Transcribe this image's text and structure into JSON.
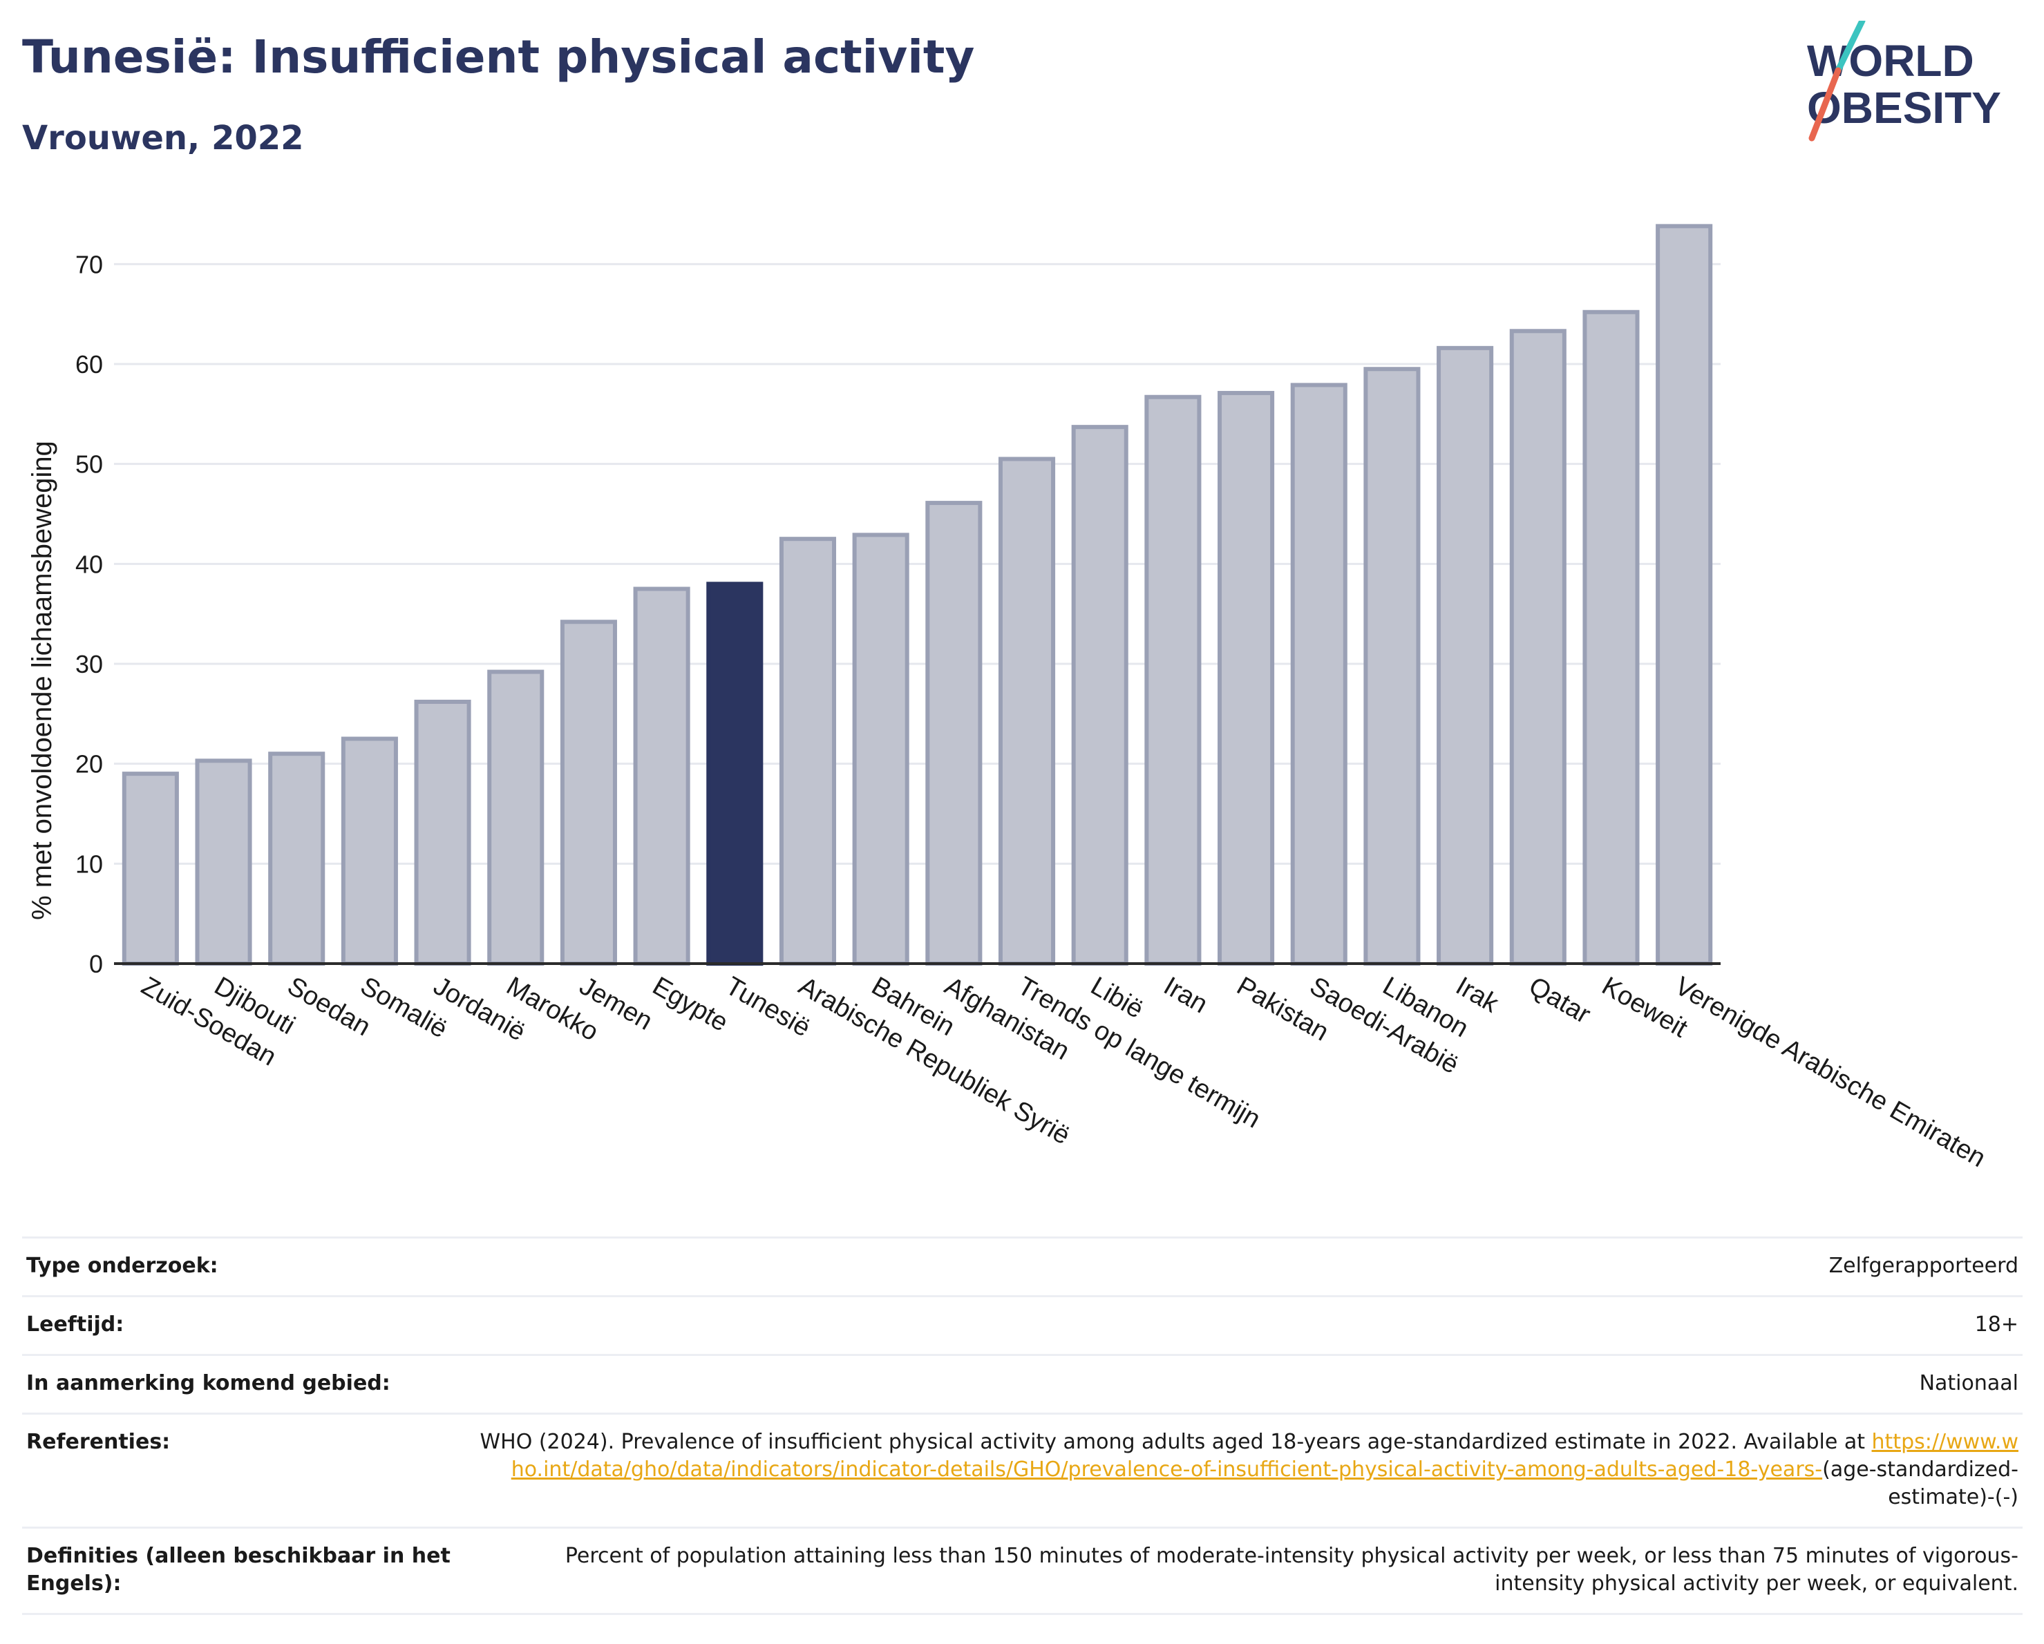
{
  "header": {
    "title": "Tunesië: Insufficient physical activity",
    "subtitle": "Vrouwen, 2022",
    "logo_line1": "WORLD",
    "logo_line2": "OBESITY"
  },
  "chart_data": {
    "type": "bar",
    "ylabel": "% met onvoldoende lichaamsbeweging",
    "xlabel": "",
    "ylim": [
      0,
      75
    ],
    "yticks": [
      0,
      10,
      20,
      30,
      40,
      50,
      60,
      70
    ],
    "grid": true,
    "highlight": "Tunesië",
    "categories": [
      "Zuid-Soedan",
      "Djibouti",
      "Soedan",
      "Somalië",
      "Jordanië",
      "Marokko",
      "Jemen",
      "Egypte",
      "Tunesië",
      "Arabische Republiek Syrië",
      "Bahrein",
      "Afghanistan",
      "Trends op lange termijn",
      "Libië",
      "Iran",
      "Pakistan",
      "Saoedi-Arabië",
      "Libanon",
      "Irak",
      "Qatar",
      "Koeweit",
      "Verenigde Arabische Emiraten"
    ],
    "values": [
      19.0,
      20.3,
      21.0,
      22.5,
      26.2,
      29.2,
      34.2,
      37.5,
      38.0,
      42.5,
      42.9,
      46.1,
      50.5,
      53.7,
      56.7,
      57.1,
      57.9,
      59.5,
      61.6,
      63.3,
      65.2,
      73.8
    ],
    "colors": {
      "bar": "#c0c3cf",
      "bar_border": "#9aa0b5",
      "highlight": "#2b3560",
      "grid": "#e6e8ee",
      "axis": "#2b2b2b"
    }
  },
  "info_table": [
    {
      "label": "Type onderzoek:",
      "value": "Zelfgerapporteerd"
    },
    {
      "label": "Leeftijd:",
      "value": "18+"
    },
    {
      "label": "In aanmerking komend gebied:",
      "value": "Nationaal"
    },
    {
      "label": "Referenties:",
      "value": "WHO (2024). Prevalence of insufficient physical activity among adults aged 18-years age-standardized estimate in 2022. Available at ",
      "link": "https://www.who.int/data/gho/data/indicators/indicator-details/GHO/prevalence-of-insufficient-physical-activity-among-adults-aged-18-years-",
      "suffix": "(age-standardized-estimate)-(-)"
    },
    {
      "label": "Definities (alleen beschikbaar in het Engels):",
      "value": "Percent of population attaining less than 150 minutes of moderate-intensity physical activity per week, or less than 75 minutes of vigorous-intensity physical activity per week, or equivalent."
    }
  ]
}
